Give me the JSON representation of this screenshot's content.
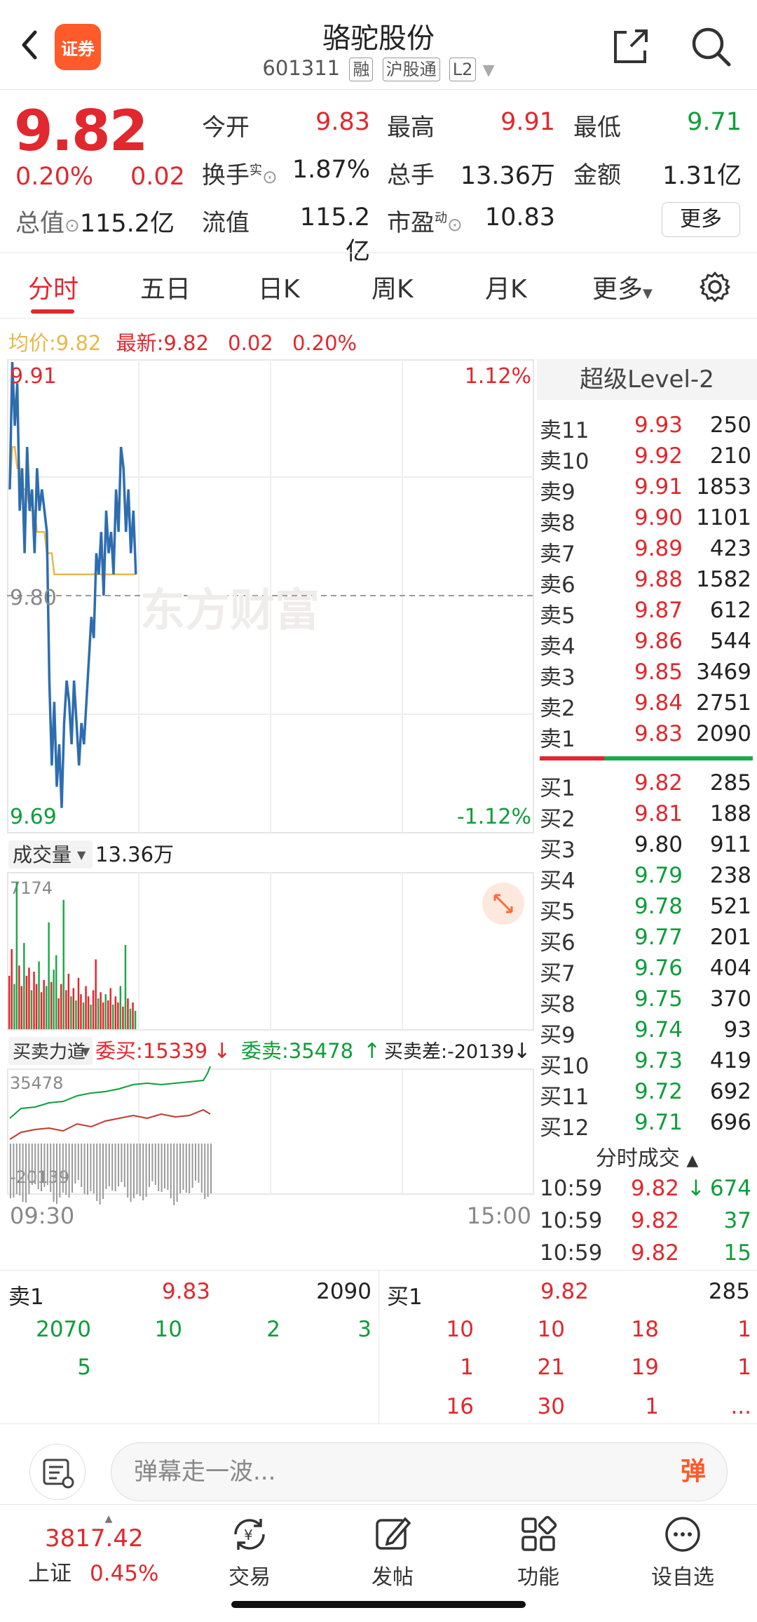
{
  "header": {
    "brand": "证券",
    "name": "骆驼股份",
    "code": "601311",
    "tags": [
      "融",
      "沪股通",
      "L2"
    ]
  },
  "quote": {
    "price": "9.82",
    "pct": "0.20%",
    "change": "0.02",
    "total_value_label": "总值",
    "total_value": "115.2亿",
    "open_label": "今开",
    "open": "9.83",
    "high_label": "最高",
    "high": "9.91",
    "low_label": "最低",
    "low": "9.71",
    "turnover_label": "换手",
    "turnover_sup": "实",
    "turnover": "1.87%",
    "volume_label": "总手",
    "volume": "13.36万",
    "amount_label": "金额",
    "amount": "1.31亿",
    "float_label": "流值",
    "float_value": "115.2亿",
    "pe_label": "市盈",
    "pe_sup": "动",
    "pe": "10.83",
    "more": "更多"
  },
  "tabs": [
    "分时",
    "五日",
    "日K",
    "周K",
    "月K",
    "更多"
  ],
  "avg_bar": {
    "avg_label": "均价:",
    "avg": "9.82",
    "latest_label": "最新:",
    "latest": "9.82",
    "chg": "0.02",
    "pct": "0.20%"
  },
  "chart": {
    "ymax": "9.91",
    "ymin": "9.69",
    "ymid": "9.80",
    "pmax": "1.12%",
    "pmin": "-1.12%",
    "watermark": "东方财富",
    "vol_label": "成交量",
    "vol_total": "13.36万",
    "vol_max": "7174",
    "force_label": "买卖力道",
    "buy_label": "委买:15339",
    "sell_label": "委卖:35478",
    "diff_label": "买卖差:-20139",
    "force_top": "35478",
    "force_bottom": "-20139",
    "t_start": "09:30",
    "t_end": "15:00"
  },
  "chart_data": {
    "type": "line",
    "x_range": [
      "09:30",
      "15:00"
    ],
    "ylim": [
      9.69,
      9.91
    ],
    "series": [
      {
        "values": [
          9.85,
          9.91,
          9.88,
          9.9,
          9.84,
          9.86,
          9.82,
          9.87,
          9.84,
          9.85,
          9.82,
          9.86,
          9.84,
          9.85,
          9.84,
          9.83,
          9.76,
          9.72,
          9.75,
          9.71,
          9.73,
          9.7,
          9.74,
          9.76,
          9.75,
          9.73,
          9.76,
          9.74,
          9.72,
          9.74,
          9.73,
          9.75,
          9.77,
          9.79,
          9.78,
          9.82,
          9.81,
          9.83,
          9.8,
          9.84,
          9.82,
          9.83,
          9.81,
          9.85,
          9.83,
          9.87,
          9.86,
          9.83,
          9.85,
          9.82,
          9.84,
          9.81
        ],
        "color": "#2d6db0"
      },
      {
        "values": [
          9.85,
          9.87,
          9.87,
          9.86,
          9.86,
          9.85,
          9.85,
          9.85,
          9.84,
          9.84,
          9.84,
          9.83,
          9.83,
          9.83,
          9.83,
          9.82,
          9.82,
          9.82,
          9.81,
          9.81,
          9.81,
          9.81,
          9.81,
          9.81,
          9.81,
          9.81,
          9.81,
          9.81,
          9.81,
          9.81,
          9.81,
          9.81,
          9.81,
          9.81,
          9.81,
          9.81,
          9.81,
          9.81,
          9.81,
          9.81,
          9.81,
          9.81,
          9.81,
          9.81,
          9.81,
          9.81,
          9.81,
          9.81,
          9.81,
          9.81,
          9.81,
          9.81
        ],
        "color": "#e8b84a"
      }
    ],
    "volume": [
      2600,
      3900,
      2200,
      7174,
      3100,
      2100,
      4200,
      2600,
      3000,
      1900,
      2800,
      2200,
      3300,
      1800,
      2400,
      2100,
      5200,
      2300,
      2900,
      3600,
      1500,
      2200,
      6300,
      1900,
      2700,
      1600,
      2000,
      1400,
      2500,
      1700,
      1300,
      2100,
      1600,
      1200,
      1900,
      3400,
      1500,
      1800,
      1300,
      1700,
      1400,
      2000,
      1200,
      1600,
      1300,
      2100,
      1100,
      4100,
      1500,
      1000,
      1300,
      900
    ],
    "volume_colors": [
      "r",
      "r",
      "g",
      "g",
      "r",
      "r",
      "g",
      "r",
      "r",
      "g",
      "r",
      "r",
      "g",
      "r",
      "r",
      "g",
      "g",
      "r",
      "g",
      "g",
      "r",
      "r",
      "g",
      "r",
      "r",
      "g",
      "r",
      "g",
      "r",
      "r",
      "g",
      "r",
      "r",
      "g",
      "r",
      "r",
      "g",
      "r",
      "r",
      "g",
      "r",
      "r",
      "g",
      "r",
      "r",
      "g",
      "r",
      "g",
      "r",
      "g",
      "r",
      "g"
    ]
  },
  "levels": {
    "title": "超级Level-2",
    "asks": [
      {
        "label": "卖11",
        "price": "9.93",
        "vol": "250"
      },
      {
        "label": "卖10",
        "price": "9.92",
        "vol": "210"
      },
      {
        "label": "卖9",
        "price": "9.91",
        "vol": "1853"
      },
      {
        "label": "卖8",
        "price": "9.90",
        "vol": "1101"
      },
      {
        "label": "卖7",
        "price": "9.89",
        "vol": "423"
      },
      {
        "label": "卖6",
        "price": "9.88",
        "vol": "1582"
      },
      {
        "label": "卖5",
        "price": "9.87",
        "vol": "612"
      },
      {
        "label": "卖4",
        "price": "9.86",
        "vol": "544"
      },
      {
        "label": "卖3",
        "price": "9.85",
        "vol": "3469"
      },
      {
        "label": "卖2",
        "price": "9.84",
        "vol": "2751"
      },
      {
        "label": "卖1",
        "price": "9.83",
        "vol": "2090"
      }
    ],
    "bids": [
      {
        "label": "买1",
        "price": "9.82",
        "vol": "285",
        "c": "red"
      },
      {
        "label": "买2",
        "price": "9.81",
        "vol": "188",
        "c": "red"
      },
      {
        "label": "买3",
        "price": "9.80",
        "vol": "911",
        "c": "dark"
      },
      {
        "label": "买4",
        "price": "9.79",
        "vol": "238",
        "c": "green"
      },
      {
        "label": "买5",
        "price": "9.78",
        "vol": "521",
        "c": "green"
      },
      {
        "label": "买6",
        "price": "9.77",
        "vol": "201",
        "c": "green"
      },
      {
        "label": "买7",
        "price": "9.76",
        "vol": "404",
        "c": "green"
      },
      {
        "label": "买8",
        "price": "9.75",
        "vol": "370",
        "c": "green"
      },
      {
        "label": "买9",
        "price": "9.74",
        "vol": "93",
        "c": "green"
      },
      {
        "label": "买10",
        "price": "9.73",
        "vol": "419",
        "c": "green"
      },
      {
        "label": "买11",
        "price": "9.72",
        "vol": "692",
        "c": "green"
      },
      {
        "label": "买12",
        "price": "9.71",
        "vol": "696",
        "c": "green"
      }
    ],
    "tick_title": "分时成交",
    "ticks": [
      {
        "t": "10:59",
        "p": "9.82",
        "v": "674",
        "arrow": "↓"
      },
      {
        "t": "10:59",
        "p": "9.82",
        "v": "37",
        "arrow": ""
      },
      {
        "t": "10:59",
        "p": "9.82",
        "v": "15",
        "arrow": ""
      }
    ]
  },
  "queue": {
    "sell_label": "卖1",
    "sell_price": "9.83",
    "sell_vol": "2090",
    "buy_label": "买1",
    "buy_price": "9.82",
    "buy_vol": "285",
    "sell_row1": [
      "2070",
      "10",
      "2",
      "3"
    ],
    "sell_row2": [
      "5"
    ],
    "buy_row1": [
      "10",
      "10",
      "18",
      "1"
    ],
    "buy_row2": [
      "1",
      "21",
      "19",
      "1"
    ],
    "buy_row3": [
      "16",
      "30",
      "1",
      "..."
    ]
  },
  "danmu": {
    "placeholder": "弹幕走一波...",
    "button": "弹"
  },
  "nav": {
    "index_value": "3817.42",
    "index_name": "上证",
    "index_pct": "0.45%",
    "items": [
      "交易",
      "发帖",
      "功能",
      "设自选"
    ]
  }
}
